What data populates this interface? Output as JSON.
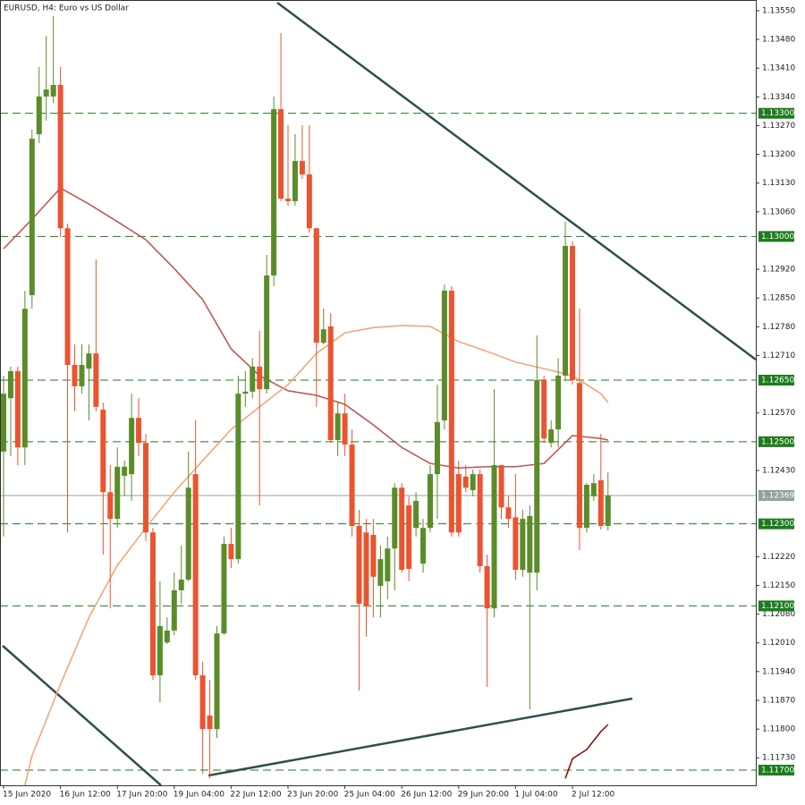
{
  "chart_data": {
    "type": "candlestick",
    "title": "EURUSD, H4:  Euro vs US Dollar",
    "categories": [
      "15 Jun 2020",
      null,
      null,
      null,
      null,
      null,
      null,
      null,
      "16 Jun 12:00",
      null,
      null,
      null,
      null,
      null,
      null,
      null,
      "17 Jun 20:00",
      null,
      null,
      null,
      null,
      null,
      null,
      null,
      "19 Jun 04:00",
      null,
      null,
      null,
      null,
      null,
      null,
      null,
      "22 Jun 12:00",
      null,
      null,
      null,
      null,
      null,
      null,
      null,
      "23 Jun 20:00",
      null,
      null,
      null,
      null,
      null,
      null,
      null,
      "25 Jun 04:00",
      null,
      null,
      null,
      null,
      null,
      null,
      null,
      "26 Jun 12:00",
      null,
      null,
      null,
      null,
      null,
      null,
      null,
      "29 Jun 20:00",
      null,
      null,
      null,
      null,
      null,
      null,
      null,
      "1 Jul 04:00",
      null,
      null,
      null,
      null,
      null,
      null,
      null,
      "2 Jul 12:00",
      null,
      null,
      null,
      null,
      null
    ],
    "open": [
      1.12476,
      1.12606,
      1.12672,
      1.12486,
      1.12857,
      1.13249,
      1.13341,
      1.13341,
      1.13369,
      1.1302,
      1.12687,
      1.12635,
      1.12678,
      1.12715,
      1.12578,
      1.12377,
      1.12312,
      1.12417,
      1.12421,
      1.12558,
      1.12497,
      1.12279,
      1.11931,
      1.12011,
      1.1204,
      1.12138,
      1.12164,
      1.12421,
      1.11931,
      1.11833,
      1.118,
      1.12033,
      1.12251,
      1.12214,
      1.12617,
      1.12622,
      1.12683,
      1.12628,
      1.12905,
      1.1331,
      1.13092,
      1.13086,
      1.13184,
      1.13151,
      1.1302,
      1.12741,
      1.12781,
      1.12504,
      1.12569,
      1.12493,
      1.12295,
      1.12279,
      1.12273,
      1.12149,
      1.1216,
      1.1224,
      1.12388,
      1.12345,
      1.1229,
      1.12203,
      1.1229,
      1.12421,
      1.12552,
      1.12868,
      1.12421,
      1.12415,
      1.12382,
      1.12421,
      1.12197,
      1.12094,
      1.12443,
      1.1234,
      1.12316,
      1.12188,
      1.12181,
      1.12181,
      1.1265,
      1.12497,
      1.1253,
      1.12661,
      1.12977,
      1.12643,
      1.1229,
      1.12367,
      1.12406,
      1.12295
    ],
    "high": [
      1.12661,
      1.12683,
      1.12683,
      1.12868,
      1.1326,
      1.13413,
      1.13489,
      1.13537,
      1.13413,
      1.13031,
      1.12737,
      1.12737,
      1.12737,
      1.12944,
      1.12595,
      1.12443,
      1.12486,
      1.12454,
      1.12617,
      1.12606,
      1.12519,
      1.1229,
      1.1216,
      1.12072,
      1.12181,
      1.12247,
      1.12476,
      1.12552,
      1.11964,
      1.1192,
      1.12051,
      1.12269,
      1.1229,
      1.12661,
      1.12672,
      1.12704,
      1.1277,
      1.12955,
      1.13341,
      1.13495,
      1.13271,
      1.13249,
      1.13271,
      1.13271,
      1.1302,
      1.12824,
      1.12813,
      1.12595,
      1.12617,
      1.1253,
      1.12334,
      1.12312,
      1.12312,
      1.12247,
      1.12269,
      1.12399,
      1.12399,
      1.12367,
      1.12377,
      1.12312,
      1.12443,
      1.12639,
      1.12883,
      1.12879,
      1.12454,
      1.12443,
      1.12432,
      1.12432,
      1.12225,
      1.12628,
      1.12443,
      1.12367,
      1.12421,
      1.12334,
      1.12345,
      1.12759,
      1.12661,
      1.12552,
      1.12704,
      1.13036,
      1.12988,
      1.12824,
      1.12399,
      1.12421,
      1.12519,
      1.12425
    ],
    "low": [
      1.12269,
      1.12465,
      1.12443,
      1.12443,
      1.12824,
      1.13227,
      1.13282,
      1.13325,
      1.12999,
      1.12279,
      1.12574,
      1.12617,
      1.12552,
      1.12574,
      1.12225,
      1.12094,
      1.1229,
      1.12367,
      1.12356,
      1.12465,
      1.12258,
      1.1192,
      1.11865,
      1.12007,
      1.12029,
      1.12105,
      1.1216,
      1.1192,
      1.11691,
      1.1168,
      1.11778,
      1.12029,
      1.12192,
      1.12203,
      1.12585,
      1.12606,
      1.12345,
      1.12617,
      1.12879,
      1.13086,
      1.13075,
      1.13075,
      1.1314,
      1.13009,
      1.12585,
      1.12737,
      1.12497,
      1.12465,
      1.12465,
      1.12269,
      1.11894,
      1.12025,
      1.12072,
      1.12072,
      1.12116,
      1.12138,
      1.12181,
      1.1216,
      1.12269,
      1.12181,
      1.12279,
      1.12312,
      1.1253,
      1.12269,
      1.12269,
      1.12377,
      1.12367,
      1.12181,
      1.11903,
      1.12072,
      1.12312,
      1.1229,
      1.12164,
      1.12171,
      1.11848,
      1.12138,
      1.12497,
      1.12486,
      1.12486,
      1.1265,
      1.12639,
      1.12236,
      1.12279,
      1.12356,
      1.12286,
      1.12284
    ],
    "close": [
      1.12617,
      1.12672,
      1.12486,
      1.12824,
      1.13238,
      1.13341,
      1.13358,
      1.13369,
      1.1302,
      1.12687,
      1.12635,
      1.12687,
      1.12715,
      1.12585,
      1.12377,
      1.12312,
      1.12439,
      1.12439,
      1.12558,
      1.12497,
      1.12279,
      1.11931,
      1.12051,
      1.1204,
      1.12138,
      1.12164,
      1.12388,
      1.11931,
      1.118,
      1.118,
      1.12033,
      1.12251,
      1.12214,
      1.12617,
      1.12622,
      1.12683,
      1.12628,
      1.12905,
      1.1331,
      1.13092,
      1.13086,
      1.13184,
      1.13151,
      1.1302,
      1.12741,
      1.12774,
      1.12504,
      1.12569,
      1.12493,
      1.12295,
      1.12105,
      1.12099,
      1.12171,
      1.12214,
      1.1224,
      1.12388,
      1.12188,
      1.1219,
      1.12356,
      1.1229,
      1.12421,
      1.12548,
      1.12868,
      1.12279,
      1.12279,
      1.12388,
      1.12421,
      1.12197,
      1.12094,
      1.12443,
      1.1234,
      1.12312,
      1.12188,
      1.12312,
      1.12319,
      1.1265,
      1.12508,
      1.1253,
      1.12661,
      1.12977,
      1.1265,
      1.1229,
      1.12395,
      1.12399,
      1.12295,
      1.12369
    ],
    "up_color": "#5b8c2a",
    "down_color": "#ea5430",
    "ylim": [
      1.11663,
      1.13576
    ],
    "yticks": [
      {
        "value": 1.1355,
        "label": "1.13550"
      },
      {
        "value": 1.1348,
        "label": "1.13480"
      },
      {
        "value": 1.1341,
        "label": "1.13410"
      },
      {
        "value": 1.1334,
        "label": "1.13340"
      },
      {
        "value": 1.1327,
        "label": "1.13270"
      },
      {
        "value": 1.132,
        "label": "1.13200"
      },
      {
        "value": 1.1313,
        "label": "1.13130"
      },
      {
        "value": 1.1306,
        "label": "1.13060"
      },
      {
        "value": 1.1292,
        "label": "1.12920"
      },
      {
        "value": 1.1285,
        "label": "1.12850"
      },
      {
        "value": 1.1278,
        "label": "1.12780"
      },
      {
        "value": 1.1271,
        "label": "1.12710"
      },
      {
        "value": 1.1257,
        "label": "1.12570"
      },
      {
        "value": 1.1243,
        "label": "1.12430"
      },
      {
        "value": 1.1222,
        "label": "1.12220"
      },
      {
        "value": 1.1215,
        "label": "1.12150"
      },
      {
        "value": 1.1208,
        "label": "1.12080"
      },
      {
        "value": 1.1201,
        "label": "1.12010"
      },
      {
        "value": 1.1194,
        "label": "1.11940"
      },
      {
        "value": 1.1187,
        "label": "1.11870"
      },
      {
        "value": 1.118,
        "label": "1.11800"
      },
      {
        "value": 1.1173,
        "label": "1.11730"
      }
    ],
    "levels": [
      {
        "value": 1.133,
        "label": "1.13300"
      },
      {
        "value": 1.13,
        "label": "1.13000"
      },
      {
        "value": 1.1265,
        "label": "1.12650"
      },
      {
        "value": 1.125,
        "label": "1.12500"
      },
      {
        "value": 1.123,
        "label": "1.12300"
      },
      {
        "value": 1.121,
        "label": "1.12100"
      },
      {
        "value": 1.117,
        "label": "1.11700"
      }
    ],
    "level_color": "#1e7b1e",
    "current_price": 1.12369,
    "overlays": [
      {
        "type": "line",
        "color": "#c0504d",
        "x": [
          0,
          4,
          8,
          12,
          16,
          20,
          24,
          28,
          32,
          36,
          40,
          44,
          48,
          52,
          56,
          60,
          64,
          68,
          72,
          76,
          80,
          84,
          85
        ],
        "values": [
          1.1297,
          1.13042,
          1.13118,
          1.13079,
          1.13036,
          1.12992,
          1.12922,
          1.12846,
          1.12726,
          1.12661,
          1.12624,
          1.12613,
          1.12591,
          1.12541,
          1.12486,
          1.12447,
          1.12436,
          1.12439,
          1.12439,
          1.12447,
          1.12515,
          1.12508,
          1.12504
        ]
      },
      {
        "type": "line",
        "color": "#f5a070",
        "x": [
          3,
          4,
          8,
          12,
          16,
          20,
          24,
          28,
          32,
          36,
          40,
          44,
          48,
          52,
          56,
          60,
          64,
          68,
          72,
          76,
          80,
          84,
          85
        ],
        "values": [
          1.11663,
          1.11735,
          1.11909,
          1.12072,
          1.12199,
          1.1229,
          1.12377,
          1.12454,
          1.1253,
          1.12585,
          1.12639,
          1.12715,
          1.12765,
          1.12778,
          1.12783,
          1.12781,
          1.12744,
          1.1272,
          1.12694,
          1.12678,
          1.12661,
          1.12617,
          1.12595
        ]
      },
      {
        "type": "line",
        "color": "#8b0000",
        "x": [
          79,
          80,
          82,
          84,
          85
        ],
        "values": [
          1.1168,
          1.11728,
          1.1175,
          1.11794,
          1.11811
        ]
      }
    ]
  }
}
